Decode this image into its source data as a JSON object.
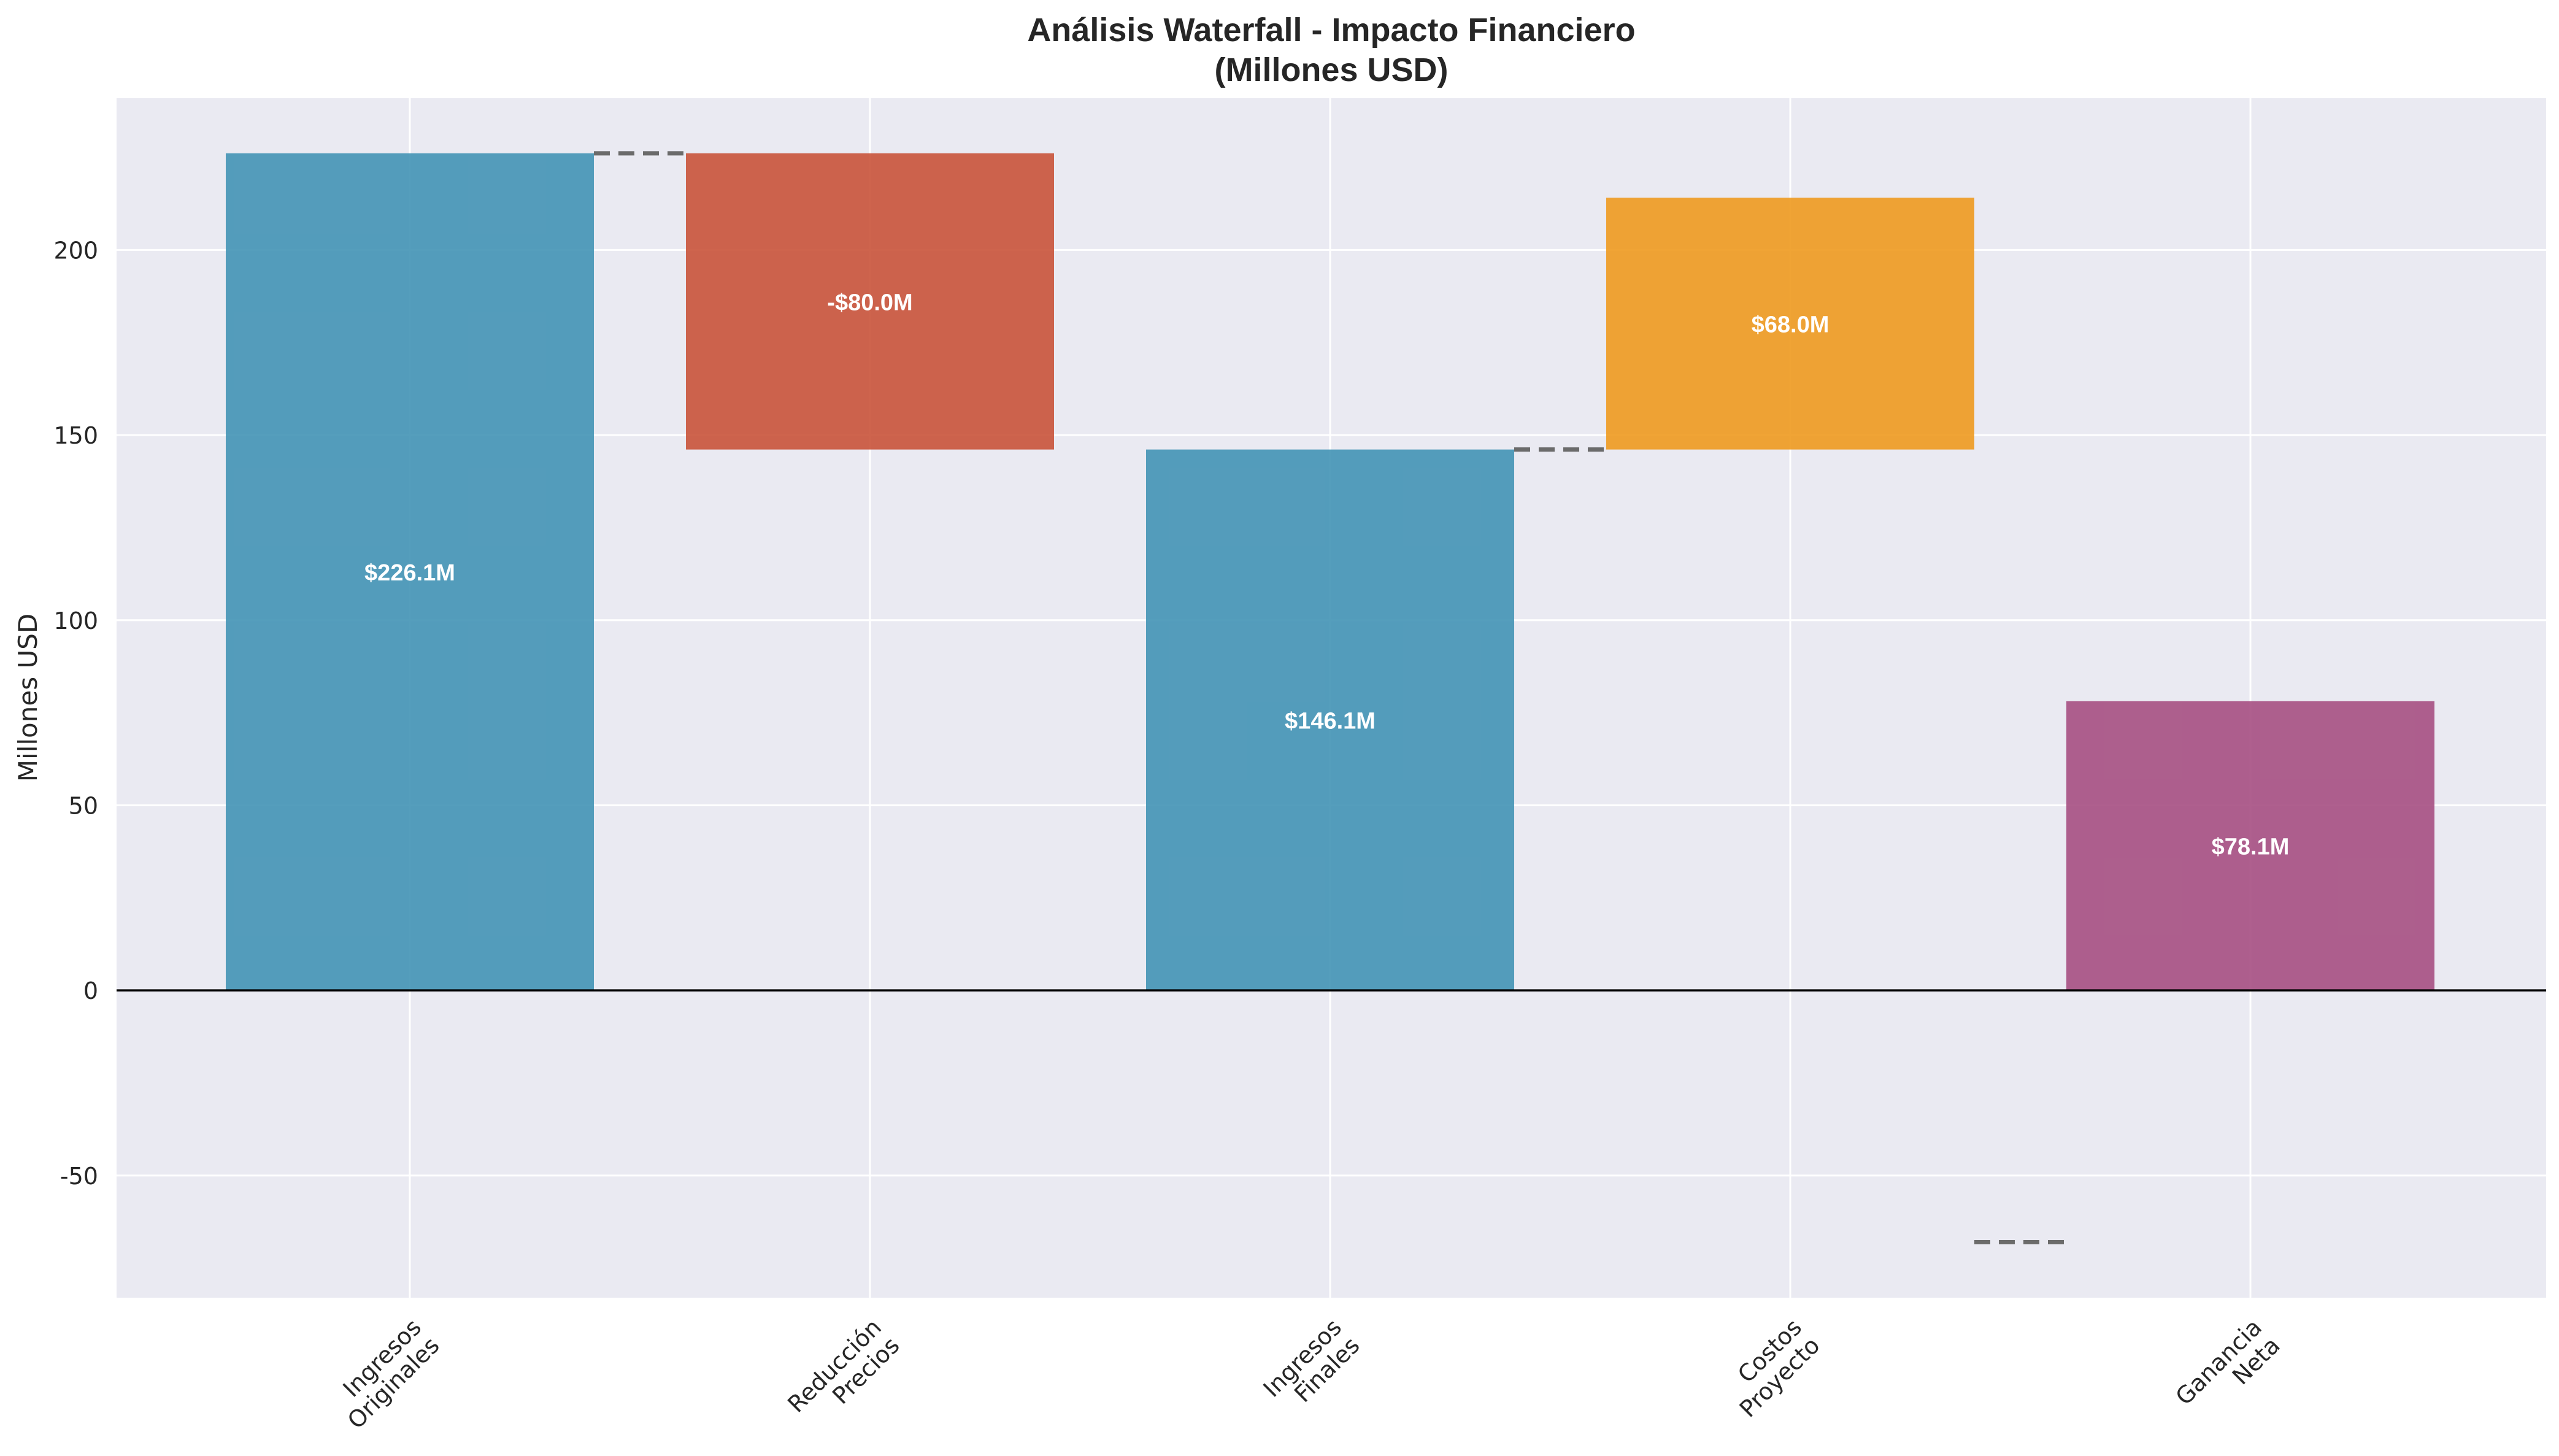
{
  "chart_data": {
    "type": "bar",
    "title_lines": [
      "Análisis Waterfall - Impacto Financiero",
      "(Millones USD)"
    ],
    "ylabel": "Millones USD",
    "ylim": [
      -83,
      241
    ],
    "yticks": [
      -50,
      0,
      50,
      100,
      150,
      200
    ],
    "grid": true,
    "categories": [
      [
        "Ingresos",
        "Originales"
      ],
      [
        "Reducción",
        "Precios"
      ],
      [
        "Ingresos",
        "Finales"
      ],
      [
        "Costos",
        "Proyecto"
      ],
      [
        "Ganancia",
        "Neta"
      ]
    ],
    "bars": [
      {
        "bottom": 0,
        "top": 226.1,
        "label": "$226.1M",
        "color": "#4393b5"
      },
      {
        "bottom": 146.1,
        "top": 226.1,
        "label": "-$80.0M",
        "color": "#c9533a"
      },
      {
        "bottom": 0,
        "top": 146.1,
        "label": "$146.1M",
        "color": "#4393b5"
      },
      {
        "bottom": 146.1,
        "top": 214.1,
        "label": "$68.0M",
        "color": "#ee9a1f"
      },
      {
        "bottom": 0,
        "top": 78.1,
        "label": "$78.1M",
        "color": "#a64f82"
      }
    ],
    "connectors": [
      226.1,
      null,
      146.1,
      -68.0
    ]
  },
  "colors": {
    "plot_background": "#eaeaf2",
    "grid": "#ffffff",
    "zero_line": "#000000",
    "connector": "#6b6b6b"
  }
}
